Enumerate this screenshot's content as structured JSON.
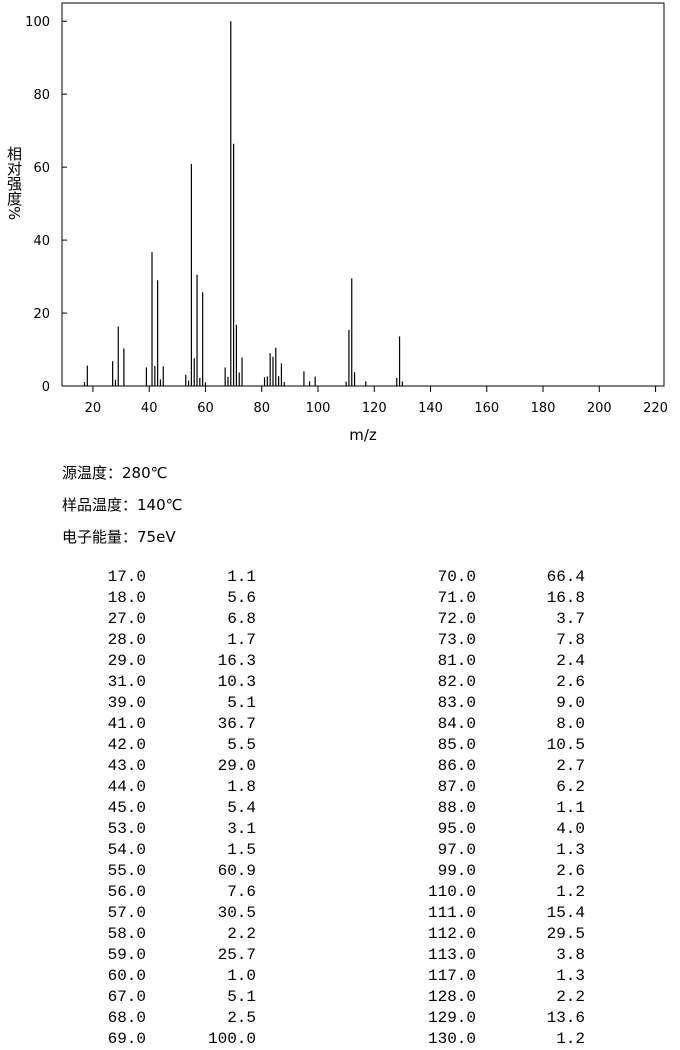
{
  "chart_data": {
    "type": "bar",
    "ylabel": "相对强度%",
    "xlabel": "m/z",
    "xlim": [
      9,
      223
    ],
    "ylim": [
      0,
      105
    ],
    "xticks": [
      20,
      40,
      60,
      80,
      100,
      120,
      140,
      160,
      180,
      200,
      220
    ],
    "yticks": [
      0,
      20,
      40,
      60,
      80,
      100
    ],
    "color": "#000000",
    "x": [
      17,
      18,
      27,
      28,
      29,
      31,
      39,
      41,
      42,
      43,
      44,
      45,
      53,
      54,
      55,
      56,
      57,
      58,
      59,
      60,
      67,
      68,
      69,
      70,
      71,
      72,
      73,
      81,
      82,
      83,
      84,
      85,
      86,
      87,
      88,
      95,
      97,
      99,
      110,
      111,
      112,
      113,
      117,
      128,
      129,
      130
    ],
    "x_labels": [
      "17.0",
      "18.0",
      "27.0",
      "28.0",
      "29.0",
      "31.0",
      "39.0",
      "41.0",
      "42.0",
      "43.0",
      "44.0",
      "45.0",
      "53.0",
      "54.0",
      "55.0",
      "56.0",
      "57.0",
      "58.0",
      "59.0",
      "60.0",
      "67.0",
      "68.0",
      "69.0",
      "70.0",
      "71.0",
      "72.0",
      "73.0",
      "81.0",
      "82.0",
      "83.0",
      "84.0",
      "85.0",
      "86.0",
      "87.0",
      "88.0",
      "95.0",
      "97.0",
      "99.0",
      "110.0",
      "111.0",
      "112.0",
      "113.0",
      "117.0",
      "128.0",
      "129.0",
      "130.0"
    ],
    "values": [
      1.1,
      5.6,
      6.8,
      1.7,
      16.3,
      10.3,
      5.1,
      36.7,
      5.5,
      29.0,
      1.8,
      5.4,
      3.1,
      1.5,
      60.9,
      7.6,
      30.5,
      2.2,
      25.7,
      1.0,
      5.1,
      2.5,
      100,
      66.4,
      16.8,
      3.7,
      7.8,
      2.4,
      2.6,
      9.0,
      8.0,
      10.5,
      2.7,
      6.2,
      1.1,
      4.0,
      1.3,
      2.6,
      1.2,
      15.4,
      29.5,
      3.8,
      1.3,
      2.2,
      13.6,
      1.2
    ],
    "value_labels": [
      "1.1",
      "5.6",
      "6.8",
      "1.7",
      "16.3",
      "10.3",
      "5.1",
      "36.7",
      "5.5",
      "29.0",
      "1.8",
      "5.4",
      "3.1",
      "1.5",
      "60.9",
      "7.6",
      "30.5",
      "2.2",
      "25.7",
      "1.0",
      "5.1",
      "2.5",
      "100.0",
      "66.4",
      "16.8",
      "3.7",
      "7.8",
      "2.4",
      "2.6",
      "9.0",
      "8.0",
      "10.5",
      "2.7",
      "6.2",
      "1.1",
      "4.0",
      "1.3",
      "2.6",
      "1.2",
      "15.4",
      "29.5",
      "3.8",
      "1.3",
      "2.2",
      "13.6",
      "1.2"
    ]
  },
  "info": [
    "源温度：280℃",
    "样品温度：140℃",
    "电子能量：75eV"
  ]
}
